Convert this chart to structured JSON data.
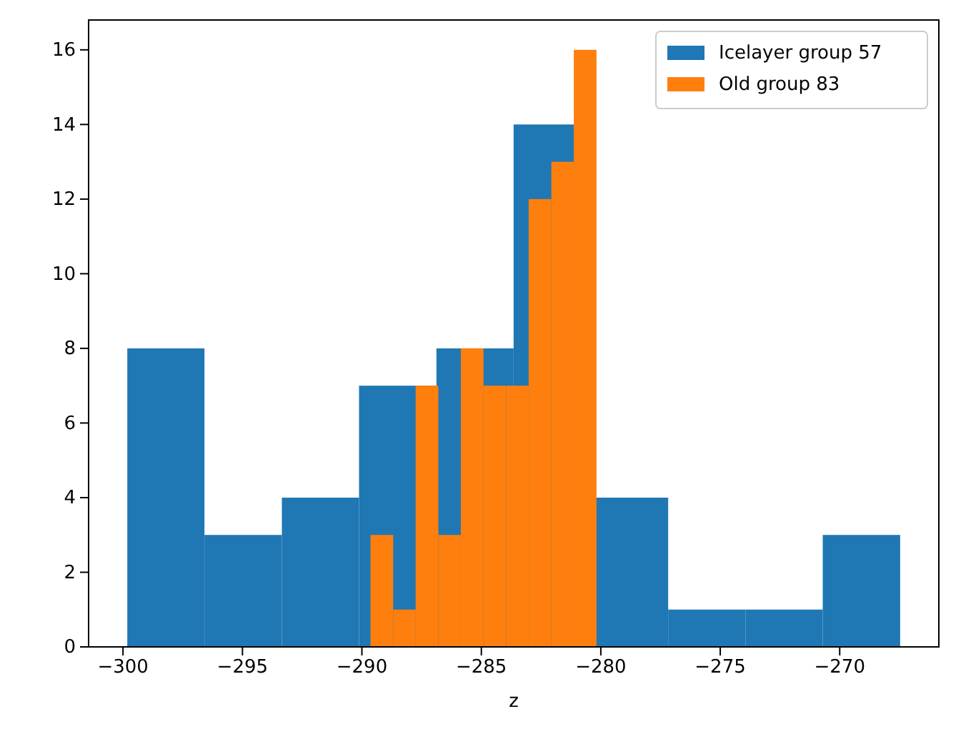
{
  "chart_data": {
    "type": "histogram",
    "xlabel": "z",
    "xlim": [
      -301.44,
      -265.85
    ],
    "xticks": [
      {
        "value": -300,
        "label": "−300"
      },
      {
        "value": -295,
        "label": "−295"
      },
      {
        "value": -290,
        "label": "−290"
      },
      {
        "value": -285,
        "label": "−285"
      },
      {
        "value": -280,
        "label": "−280"
      },
      {
        "value": -275,
        "label": "−275"
      },
      {
        "value": -270,
        "label": "−270"
      }
    ],
    "ylim": [
      0,
      16.8
    ],
    "yticks": [
      0,
      2,
      4,
      6,
      8,
      10,
      12,
      14,
      16
    ],
    "grid": false,
    "legend": "top right",
    "bins": [
      -299.82,
      -296.59,
      -293.35,
      -290.12,
      -286.88,
      -283.65,
      -280.41,
      -277.18,
      -273.94,
      -270.71,
      -267.47
    ],
    "series": [
      {
        "name": "Icelayer group 57",
        "color": "#1f77b4",
        "values": [
          8,
          3,
          4,
          7,
          8,
          14,
          4,
          1,
          1,
          3
        ]
      },
      {
        "name": "Old group 83",
        "color": "#ff7f0e",
        "bins": [
          -289.64,
          -288.69,
          -287.75,
          -286.8,
          -285.86,
          -284.91,
          -283.96,
          -283.02,
          -282.07,
          -281.13,
          -280.18
        ],
        "values": [
          3,
          1,
          7,
          3,
          8,
          7,
          7,
          12,
          13,
          16
        ]
      }
    ]
  }
}
